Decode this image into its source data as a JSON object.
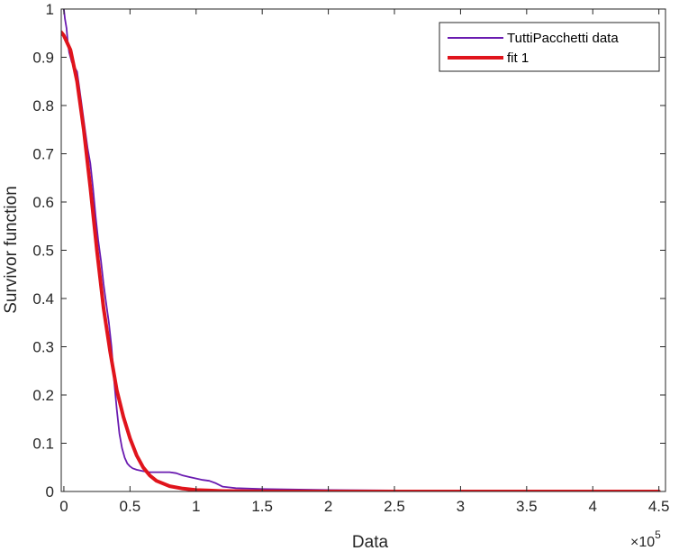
{
  "chart_data": {
    "type": "line",
    "title": "",
    "xlabel": "Data",
    "ylabel": "Survivor function",
    "x_exponent_label": "×10",
    "x_exponent_power": "5",
    "xlim": [
      -2000,
      455000
    ],
    "ylim": [
      0,
      1
    ],
    "grid": false,
    "legend_placement": "top-right",
    "x_ticks": [
      0,
      50000,
      100000,
      150000,
      200000,
      250000,
      300000,
      350000,
      400000,
      450000
    ],
    "x_tick_labels": [
      "0",
      "0.5",
      "1",
      "1.5",
      "2",
      "2.5",
      "3",
      "3.5",
      "4",
      "4.5"
    ],
    "y_ticks": [
      0,
      0.1,
      0.2,
      0.3,
      0.4,
      0.5,
      0.6,
      0.7,
      0.8,
      0.9,
      1
    ],
    "y_tick_labels": [
      "0",
      "0.1",
      "0.2",
      "0.3",
      "0.4",
      "0.5",
      "0.6",
      "0.7",
      "0.8",
      "0.9",
      "1"
    ],
    "series": [
      {
        "name": "TuttiPacchetti data",
        "color": "#6a1bb0",
        "x": [
          0,
          800,
          2000,
          3000,
          4000,
          5000,
          6000,
          8000,
          10000,
          12000,
          14000,
          16000,
          18000,
          20000,
          22000,
          24000,
          26000,
          28000,
          30000,
          32000,
          34000,
          36000,
          38000,
          40000,
          42000,
          44000,
          46000,
          48000,
          50000,
          52000,
          55000,
          60000,
          65000,
          70000,
          75000,
          80000,
          85000,
          90000,
          95000,
          100000,
          105000,
          110000,
          115000,
          120000,
          130000,
          150000,
          200000,
          250000,
          300000,
          350000,
          400000,
          450000
        ],
        "y": [
          1.0,
          0.98,
          0.96,
          0.93,
          0.91,
          0.9,
          0.89,
          0.88,
          0.87,
          0.83,
          0.79,
          0.75,
          0.71,
          0.68,
          0.63,
          0.57,
          0.52,
          0.48,
          0.43,
          0.39,
          0.35,
          0.3,
          0.23,
          0.17,
          0.12,
          0.09,
          0.07,
          0.058,
          0.052,
          0.048,
          0.045,
          0.042,
          0.04,
          0.04,
          0.04,
          0.04,
          0.038,
          0.033,
          0.03,
          0.027,
          0.024,
          0.022,
          0.017,
          0.01,
          0.007,
          0.005,
          0.003,
          0.002,
          0.001,
          0.001,
          0.0,
          0.0
        ]
      },
      {
        "name": "fit 1",
        "color": "#e0141c",
        "x": [
          -2000,
          0,
          5000,
          10000,
          15000,
          20000,
          25000,
          30000,
          35000,
          40000,
          45000,
          50000,
          55000,
          60000,
          65000,
          70000,
          80000,
          90000,
          100000,
          110000,
          120000,
          140000,
          160000,
          200000,
          250000,
          300000,
          350000,
          400000,
          450000
        ],
        "y": [
          0.952,
          0.945,
          0.915,
          0.85,
          0.75,
          0.63,
          0.5,
          0.38,
          0.29,
          0.21,
          0.155,
          0.11,
          0.075,
          0.05,
          0.033,
          0.022,
          0.011,
          0.006,
          0.003,
          0.002,
          0.001,
          0.0005,
          0.0002,
          0.0,
          0.0,
          0.0,
          0.0,
          0.0,
          0.0
        ]
      }
    ]
  }
}
